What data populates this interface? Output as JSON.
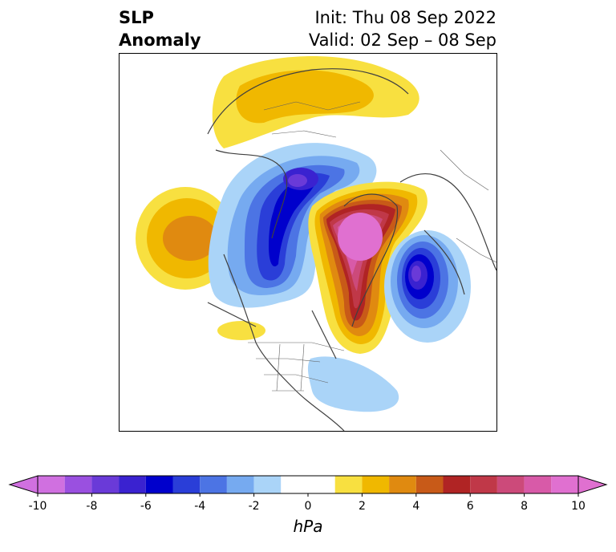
{
  "title": {
    "left_line1": "SLP",
    "left_line2": "Anomaly",
    "right_line1": "Init: Thu 08 Sep 2022",
    "right_line2": "Valid: 02 Sep – 08 Sep"
  },
  "colorbar": {
    "unit": "hPa",
    "ticks": [
      "-10",
      "-8",
      "-6",
      "-4",
      "-2",
      "0",
      "2",
      "4",
      "6",
      "8",
      "10"
    ],
    "levels": [
      -10,
      -9,
      -8,
      -7,
      -6,
      -5,
      -4,
      -3,
      -2,
      -1,
      1,
      2,
      3,
      4,
      5,
      6,
      7,
      8,
      9,
      10
    ],
    "colors": [
      "#d070e0",
      "#9a50e0",
      "#6a3ad8",
      "#3a22d0",
      "#0000cc",
      "#2a3ed8",
      "#4c74e4",
      "#76aaf0",
      "#aad4f8",
      "#ffffff",
      "#f8e040",
      "#f0b800",
      "#e08a10",
      "#c85a18",
      "#b02424",
      "#c03848",
      "#cc4a7a",
      "#d85aa8",
      "#e070d0"
    ],
    "extend_min_color": "#d070e0",
    "extend_max_color": "#e070d0"
  }
}
